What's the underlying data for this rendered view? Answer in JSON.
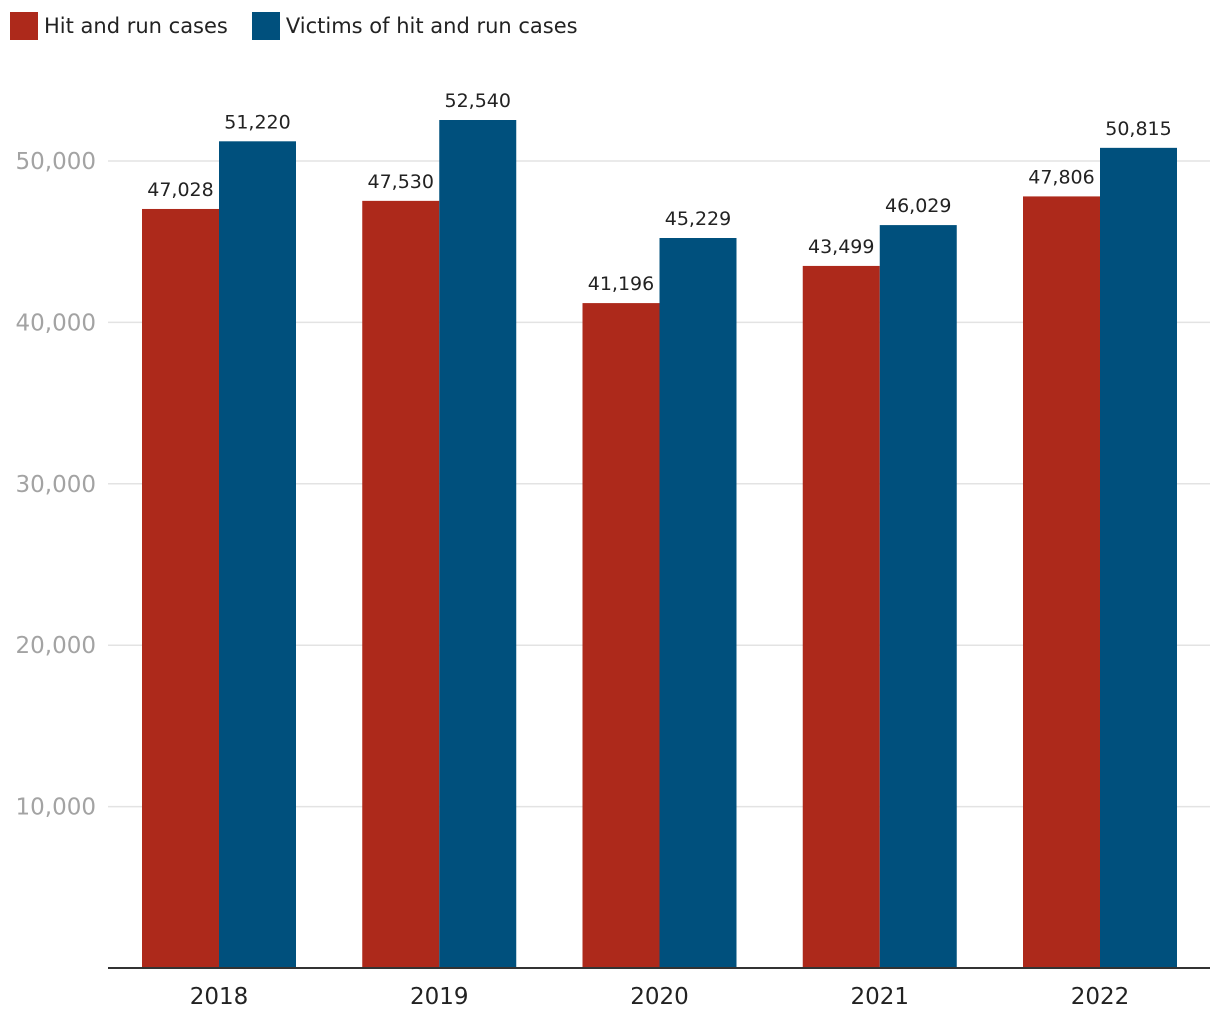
{
  "chart_data": {
    "type": "bar",
    "categories": [
      "2018",
      "2019",
      "2020",
      "2021",
      "2022"
    ],
    "series": [
      {
        "name": "Hit and run cases",
        "color": "#ad291b",
        "values": [
          47028,
          47530,
          41196,
          43499,
          47806
        ],
        "labels": [
          "47,028",
          "47,530",
          "41,196",
          "43,499",
          "47,806"
        ]
      },
      {
        "name": "Victims of hit and run cases",
        "color": "#00507d",
        "values": [
          51220,
          52540,
          45229,
          46029,
          50815
        ],
        "labels": [
          "51,220",
          "52,540",
          "45,229",
          "46,029",
          "50,815"
        ]
      }
    ],
    "yticks": [
      10000,
      20000,
      30000,
      40000,
      50000
    ],
    "ytick_labels": [
      "10,000",
      "20,000",
      "30,000",
      "40,000",
      "50,000"
    ],
    "ylim": [
      0,
      56000
    ],
    "grid": true,
    "legend_position": "top-left",
    "title": "",
    "xlabel": "",
    "ylabel": ""
  }
}
